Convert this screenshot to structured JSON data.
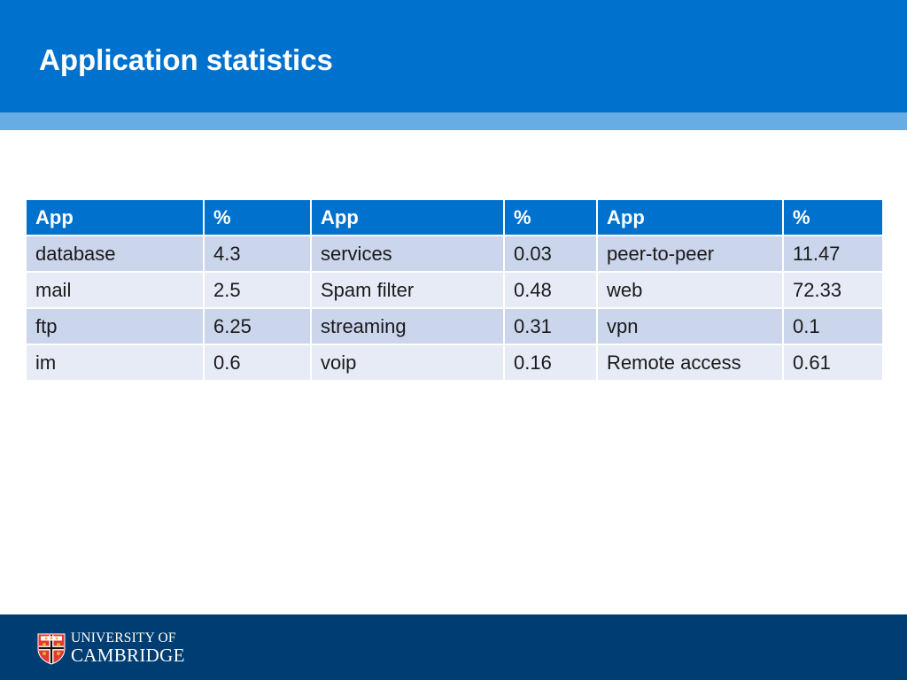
{
  "slide": {
    "title": "Application statistics"
  },
  "table": {
    "headers": [
      "App",
      "%",
      "App",
      "%",
      "App",
      "%"
    ],
    "rows": [
      [
        "database",
        "4.3",
        "services",
        "0.03",
        "peer-to-peer",
        "11.47"
      ],
      [
        "mail",
        "2.5",
        "Spam filter",
        "0.48",
        "web",
        "72.33"
      ],
      [
        "ftp",
        "6.25",
        "streaming",
        "0.31",
        "vpn",
        "0.1"
      ],
      [
        "im",
        "0.6",
        "voip",
        "0.16",
        "Remote access",
        "0.61"
      ]
    ]
  },
  "footer": {
    "logo_line1": "UNIVERSITY OF",
    "logo_line2": "CAMBRIDGE"
  },
  "colors": {
    "header_blue": "#0072CE",
    "header_strip": "#68ACE5",
    "table_header": "#0072CE",
    "row_odd": "#CBD5EC",
    "row_even": "#E7EBF6",
    "footer_navy": "#003D73"
  },
  "icons": {
    "crest": "university-crest-icon"
  }
}
